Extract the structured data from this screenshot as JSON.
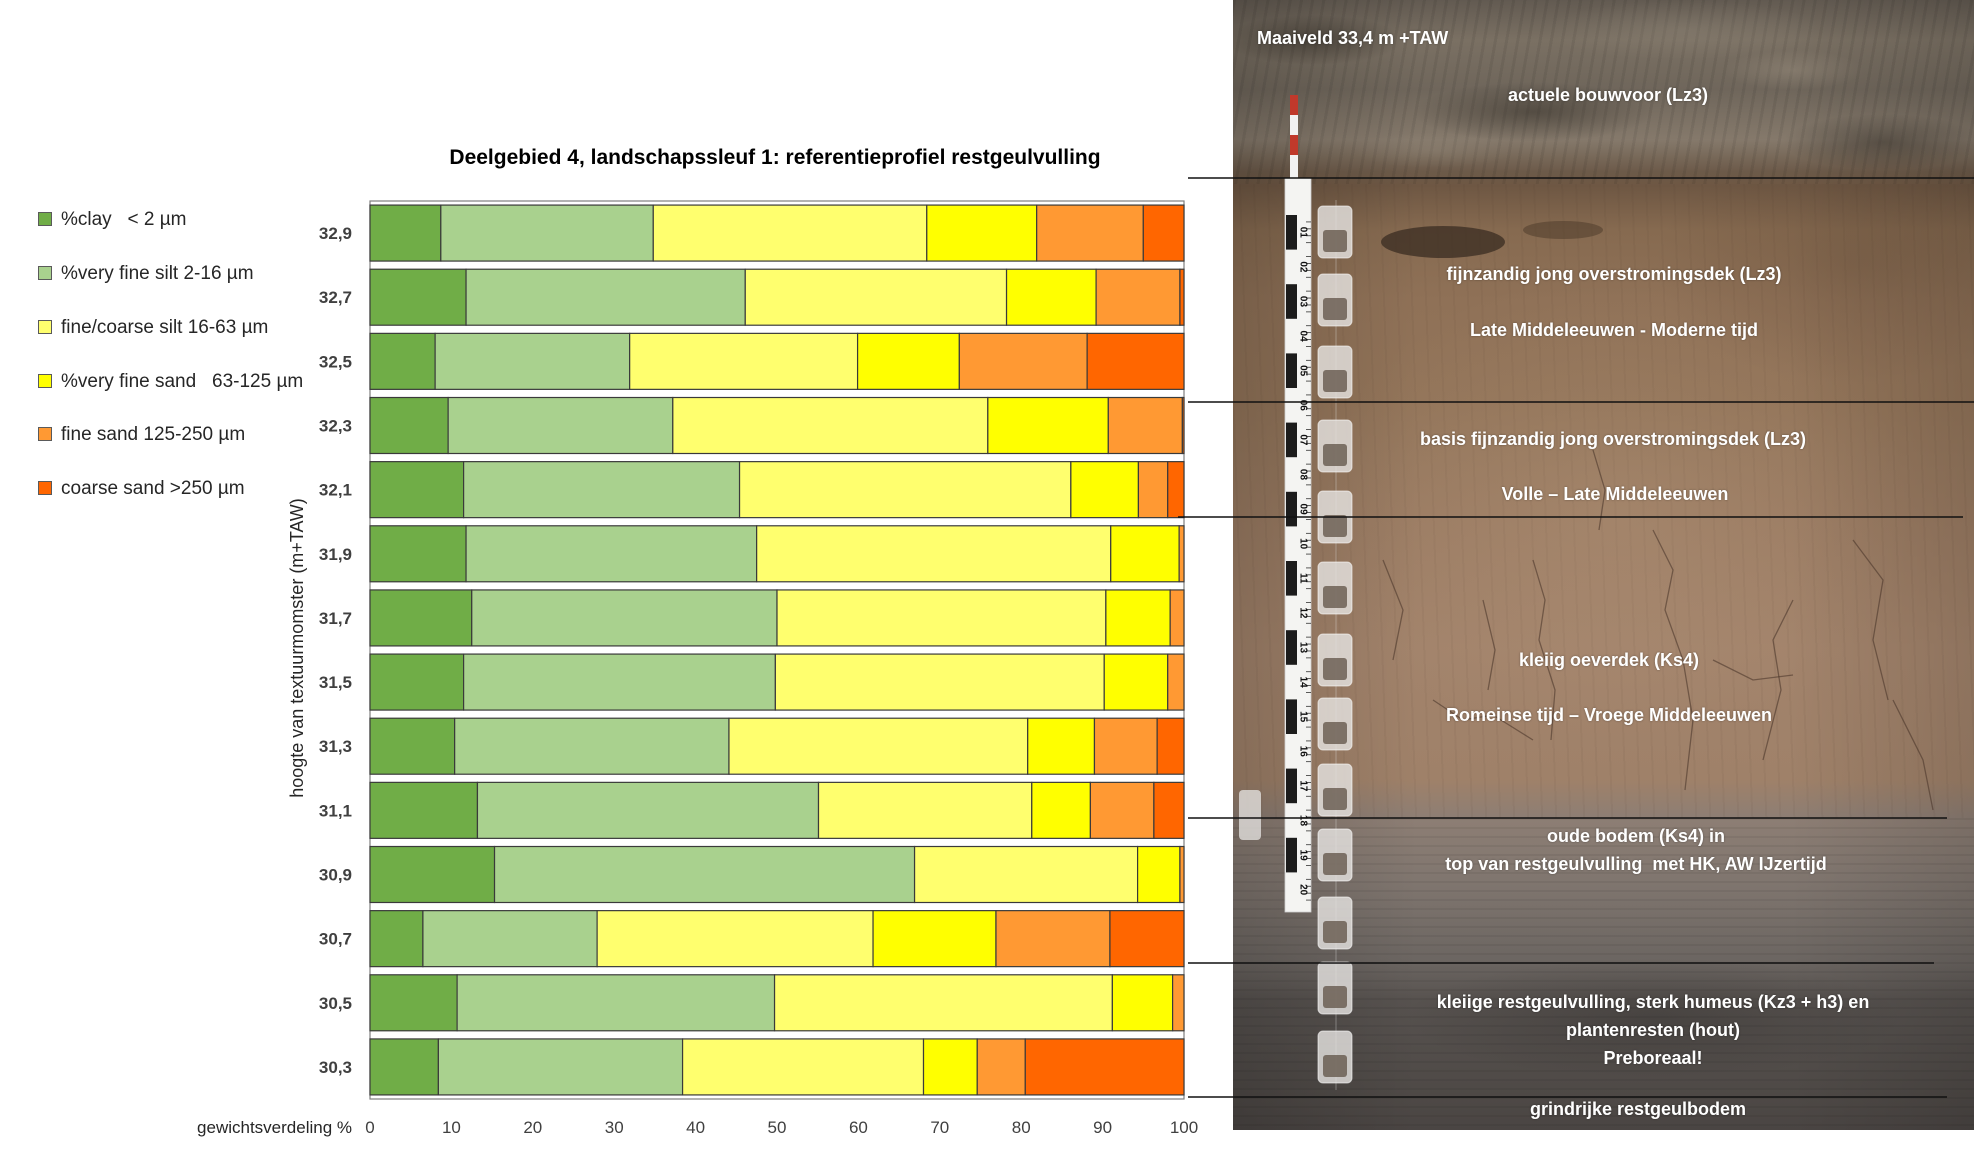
{
  "chart_data": {
    "type": "bar",
    "orientation": "horizontal",
    "stacked": true,
    "title": "Deelgebied 4, landschapssleuf 1: referentieprofiel restgeulvulling",
    "xlabel": "gewichtsverdeling %",
    "ylabel": "hoogte van textuurmomster (m+TAW)",
    "xlim": [
      0,
      100
    ],
    "xticks": [
      0,
      10,
      20,
      30,
      40,
      50,
      60,
      70,
      80,
      90,
      100
    ],
    "grid": false,
    "legend": "left",
    "categories": [
      "32,9",
      "32,7",
      "32,5",
      "32,3",
      "32,1",
      "31,9",
      "31,7",
      "31,5",
      "31,3",
      "31,1",
      "30,9",
      "30,7",
      "30,5",
      "30,3"
    ],
    "series": [
      {
        "name": "%clay   < 2 µm",
        "color": "#70AD47",
        "values": [
          8.7,
          11.8,
          8.0,
          9.6,
          11.5,
          11.8,
          12.5,
          11.5,
          10.4,
          13.2,
          15.3,
          6.5,
          10.7,
          8.4
        ]
      },
      {
        "name": "%very fine silt 2-16 µm",
        "color": "#A9D18E",
        "values": [
          26.1,
          34.3,
          23.9,
          27.6,
          33.9,
          35.7,
          37.5,
          38.3,
          33.7,
          41.9,
          51.6,
          21.4,
          39.0,
          30.0
        ]
      },
      {
        "name": "fine/coarse silt 16-63 µm",
        "color": "#FFFF6E",
        "values": [
          33.6,
          32.1,
          28.0,
          38.7,
          40.7,
          43.5,
          40.4,
          40.4,
          36.7,
          26.2,
          27.4,
          33.9,
          41.5,
          29.6
        ]
      },
      {
        "name": "%very fine sand   63-125 µm",
        "color": "#FFFF00",
        "values": [
          13.5,
          11.0,
          12.5,
          14.8,
          8.3,
          8.4,
          7.9,
          7.8,
          8.2,
          7.2,
          5.2,
          15.1,
          7.4,
          6.6
        ]
      },
      {
        "name": "fine sand 125-250 µm",
        "color": "#FF9933",
        "values": [
          13.1,
          10.3,
          15.7,
          9.1,
          3.6,
          0.6,
          1.7,
          2.0,
          7.7,
          7.8,
          0.5,
          14.0,
          1.4,
          5.9
        ]
      },
      {
        "name": "coarse sand >250 µm",
        "color": "#FF6600",
        "values": [
          5.0,
          0.5,
          11.9,
          0.2,
          2.0,
          0,
          0,
          0,
          3.3,
          3.7,
          0,
          9.1,
          0,
          19.5
        ]
      }
    ]
  },
  "photo": {
    "surface_level": "Maaiveld 33,4 m +TAW",
    "layers": [
      {
        "lines": [
          "actuele bouwvoor (Lz3)"
        ]
      },
      {
        "lines": [
          "fijnzandig jong overstromingsdek (Lz3)",
          "Late Middeleeuwen - Moderne tijd"
        ]
      },
      {
        "lines": [
          "basis fijnzandig jong overstromingsdek (Lz3)",
          "Volle – Late Middeleeuwen"
        ]
      },
      {
        "lines": [
          "kleiig oeverdek (Ks4)",
          "Romeinse tijd – Vroege Middeleeuwen"
        ]
      },
      {
        "lines": [
          "oude bodem (Ks4) in",
          "top van restgeulvulling  met HK, AW IJzertijd"
        ]
      },
      {
        "lines": [
          "kleiige restgeulvulling, sterk humeus (Kz3 + h3) en",
          "plantenresten (hout)",
          "Preboreaal!"
        ]
      },
      {
        "lines": [
          "grindrijke restgeulbodem"
        ]
      }
    ],
    "ruler_labels": [
      "01",
      "02",
      "03",
      "04",
      "05",
      "06",
      "07",
      "08",
      "09",
      "10",
      "11",
      "12",
      "13",
      "14",
      "15",
      "16",
      "17",
      "18",
      "19",
      "20"
    ]
  }
}
